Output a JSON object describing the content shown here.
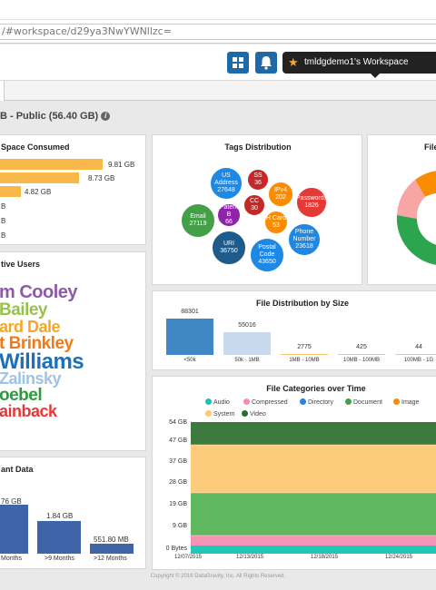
{
  "browser": {
    "url": "/#workspace/d29ya3NwYWNllzc="
  },
  "workspace": {
    "name": "tmldgdemo1's Workspace"
  },
  "subheader": {
    "text": "B - Public (56.40 GB)"
  },
  "space_consumed": {
    "title": "Space Consumed",
    "bars": [
      {
        "label": "9.81 GB",
        "value": 9.81
      },
      {
        "label": "8.73 GB",
        "value": 8.73
      },
      {
        "label": "4.82 GB",
        "value": 4.82
      },
      {
        "label": "B",
        "value": 0
      },
      {
        "label": "B",
        "value": 0
      },
      {
        "label": "B",
        "value": 0
      }
    ]
  },
  "active_users": {
    "title": "tive Users",
    "words": [
      {
        "text": "m Cooley",
        "color": "#8e5aa8"
      },
      {
        "text": "Bailey",
        "color": "#98c24a"
      },
      {
        "text": "ard Dale",
        "color": "#f5a623"
      },
      {
        "text": "t Brinkley",
        "color": "#f07a1a"
      },
      {
        "text": "Williams",
        "color": "#1d6fb8"
      },
      {
        "text": "Zalinsky",
        "color": "#9ec2e8"
      },
      {
        "text": "oebel",
        "color": "#2a9d3a"
      },
      {
        "text": "ainback",
        "color": "#e53935"
      }
    ]
  },
  "tags": {
    "title": "Tags Distribution",
    "bubbles": [
      {
        "name": "US Address",
        "value": "27648",
        "color": "#1e88e5"
      },
      {
        "name": "SS",
        "value": "36",
        "color": "#c62828"
      },
      {
        "name": "IPv4",
        "value": "202",
        "color": "#fb8c00"
      },
      {
        "name": "Passwords",
        "value": "1826",
        "color": "#e53935"
      },
      {
        "name": "Patent B",
        "value": "66",
        "color": "#8e24aa"
      },
      {
        "name": "CC",
        "value": "30",
        "color": "#c62828"
      },
      {
        "name": "H Card",
        "value": "53",
        "color": "#fb8c00"
      },
      {
        "name": "Email",
        "value": "27119",
        "color": "#43a047"
      },
      {
        "name": "URI",
        "value": "36750",
        "color": "#1e5a8a"
      },
      {
        "name": "Postal Code",
        "value": "43650",
        "color": "#1e88e5"
      },
      {
        "name": "Phone Number",
        "value": "23618",
        "color": "#1e88e5"
      }
    ]
  },
  "file_title": {
    "title": "File"
  },
  "file_distribution": {
    "title": "File Distribution by Size",
    "bars": [
      {
        "category": "<50k",
        "value": 88301,
        "label": "88301",
        "color": "#3f88c5"
      },
      {
        "category": "50k - 1MB",
        "value": 55016,
        "label": "55016",
        "color": "#c8d9ee"
      },
      {
        "category": "1MB - 10MB",
        "value": 2775,
        "label": "2775",
        "color": "#f6c26b"
      },
      {
        "category": "10MB - 100MB",
        "value": 425,
        "label": "425",
        "color": "#cccccc"
      },
      {
        "category": "100MB - 1G",
        "value": 44,
        "label": "44",
        "color": "#cccccc"
      }
    ]
  },
  "categories_time": {
    "title": "File Categories over Time",
    "legend": [
      {
        "name": "Audio",
        "color": "#1ec2b3"
      },
      {
        "name": "Compressed",
        "color": "#f48fb1"
      },
      {
        "name": "Directory",
        "color": "#1e88e5"
      },
      {
        "name": "Document",
        "color": "#43a047"
      },
      {
        "name": "Image",
        "color": "#fb8c00"
      },
      {
        "name": "System",
        "color": "#fcc875"
      },
      {
        "name": "Video",
        "color": "#2e6b2e"
      }
    ],
    "yticks": [
      "54 GB",
      "47 GB",
      "37 GB",
      "28 GB",
      "19 GB",
      "9 GB",
      "0 Bytes"
    ],
    "xticks": [
      "12/07/2015",
      "12/13/2015",
      "12/18/2015",
      "12/24/2015"
    ]
  },
  "dormant": {
    "title": "ant Data",
    "bars": [
      {
        "label": "76 GB",
        "category": "Months",
        "value": 2.76
      },
      {
        "label": "1.84 GB",
        "category": ">9 Months",
        "value": 1.84
      },
      {
        "label": "551.80 MB",
        "category": ">12 Months",
        "value": 0.55
      }
    ]
  },
  "footer": {
    "text": "Copyright © 2016 DataGravity, Inc. All Rights Reserved."
  }
}
